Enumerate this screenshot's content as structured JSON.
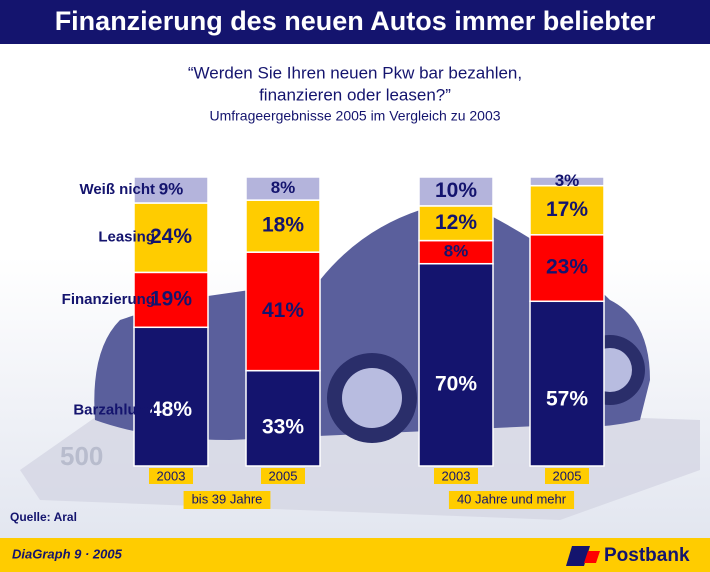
{
  "chart_data": {
    "type": "stacked_bar",
    "title": "Finanzierung des neuen Autos immer beliebter",
    "subtitle": [
      "“Werden Sie Ihren neuen Pkw bar bezahlen,",
      "finanzieren oder leasen?”"
    ],
    "note": "Umfrageergebnisse 2005 im Vergleich zu 2003",
    "categories": [
      "2003",
      "2005",
      "2003",
      "2005"
    ],
    "groups": [
      {
        "name": "bis 39 Jahre",
        "categories": [
          0,
          1
        ]
      },
      {
        "name": "40 Jahre und mehr",
        "categories": [
          2,
          3
        ]
      }
    ],
    "series": [
      {
        "name": "Barzahlung",
        "color": "#14146e",
        "label_color": "#ffffff",
        "values": [
          48,
          33,
          70,
          57
        ],
        "value_labels": [
          "48%",
          "33%",
          "70%",
          "57%"
        ]
      },
      {
        "name": "Finanzierung",
        "color": "#ff0000",
        "label_color": "#14146e",
        "values": [
          19,
          41,
          8,
          23
        ],
        "value_labels": [
          "19%",
          "41%",
          "8%",
          "23%"
        ]
      },
      {
        "name": "Leasing",
        "color": "#ffcc00",
        "label_color": "#14146e",
        "values": [
          24,
          18,
          12,
          17
        ],
        "value_labels": [
          "24%",
          "18%",
          "12%",
          "17%"
        ]
      },
      {
        "name": "Weiß nicht",
        "color": "#b4b4dc",
        "label_color": "#14146e",
        "values": [
          9,
          8,
          10,
          3
        ],
        "value_labels": [
          "9%",
          "8%",
          "10%",
          "3%"
        ]
      }
    ],
    "source": "Quelle: Aral",
    "footer": "DiaGraph 9 · 2005",
    "brand": "Postbank"
  }
}
